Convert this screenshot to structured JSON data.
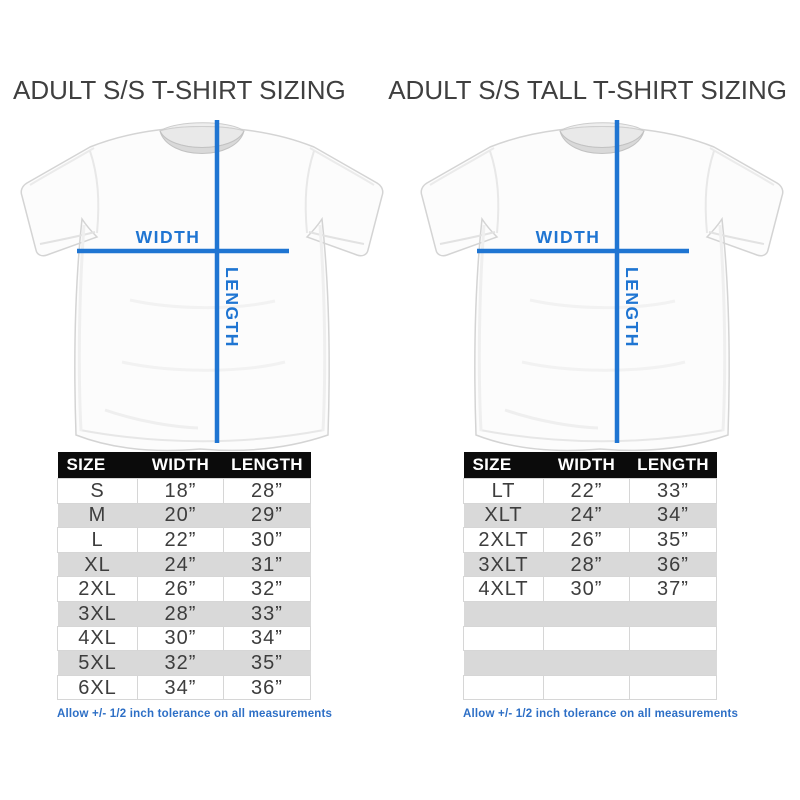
{
  "colors": {
    "accent_blue": "#1f75d2",
    "footnote_blue": "#2d6fc6",
    "table_header_bg": "#0b0b0b",
    "stripe_gray": "#d9d9d9"
  },
  "panels": [
    {
      "title": "ADULT S/S T-SHIRT SIZING",
      "diagram": {
        "width_label": "WIDTH",
        "length_label": "LENGTH"
      },
      "table": {
        "headers": [
          "SIZE",
          "WIDTH",
          "LENGTH"
        ],
        "rows": [
          [
            "S",
            "18”",
            "28”"
          ],
          [
            "M",
            "20”",
            "29”"
          ],
          [
            "L",
            "22”",
            "30”"
          ],
          [
            "XL",
            "24”",
            "31”"
          ],
          [
            "2XL",
            "26”",
            "32”"
          ],
          [
            "3XL",
            "28”",
            "33”"
          ],
          [
            "4XL",
            "30”",
            "34”"
          ],
          [
            "5XL",
            "32”",
            "35”"
          ],
          [
            "6XL",
            "34”",
            "36”"
          ]
        ]
      },
      "footnote": "Allow +/- 1/2 inch tolerance on all measurements"
    },
    {
      "title": "ADULT S/S TALL T-SHIRT SIZING",
      "diagram": {
        "width_label": "WIDTH",
        "length_label": "LENGTH"
      },
      "table": {
        "headers": [
          "SIZE",
          "WIDTH",
          "LENGTH"
        ],
        "rows": [
          [
            "LT",
            "22”",
            "33”"
          ],
          [
            "XLT",
            "24”",
            "34”"
          ],
          [
            "2XLT",
            "26”",
            "35”"
          ],
          [
            "3XLT",
            "28”",
            "36”"
          ],
          [
            "4XLT",
            "30”",
            "37”"
          ],
          [
            "",
            "",
            ""
          ],
          [
            "",
            "",
            ""
          ],
          [
            "",
            "",
            ""
          ],
          [
            "",
            "",
            ""
          ]
        ]
      },
      "footnote": "Allow +/- 1/2 inch tolerance on all measurements"
    }
  ]
}
